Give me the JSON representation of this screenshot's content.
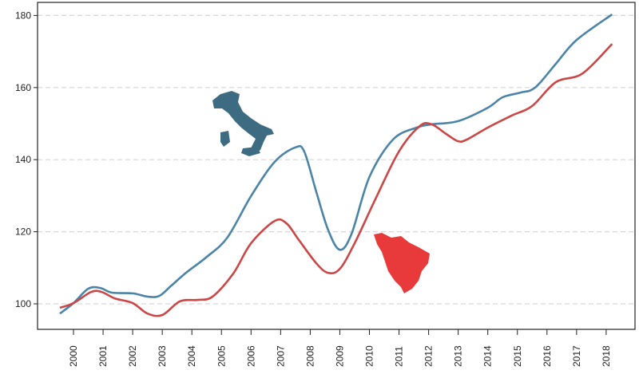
{
  "chart_data": {
    "type": "line",
    "title": "",
    "xlabel": "",
    "ylabel": "",
    "xlim": [
      1999.4,
      2018.6
    ],
    "ylim": [
      93.5,
      183.5
    ],
    "grid": "horizontal dashed",
    "yticks": [
      100,
      120,
      140,
      160,
      180
    ],
    "xticks": [
      "2000",
      "2001",
      "2002",
      "2003",
      "2004",
      "2005",
      "2006",
      "2007",
      "2008",
      "2009",
      "2010",
      "2011",
      "2012",
      "2013",
      "2014",
      "2015",
      "2016",
      "2017",
      "2018"
    ],
    "series": [
      {
        "name": "Italy",
        "color": "#4a84a6",
        "x": [
          1999.54,
          2000,
          2000.5,
          2000.9,
          2001.3,
          2002,
          2002.5,
          2002.9,
          2003.3,
          2003.8,
          2004.5,
          2005.2,
          2006,
          2006.8,
          2007.5,
          2007.8,
          2008.2,
          2008.6,
          2009,
          2009.4,
          2010,
          2010.8,
          2011.6,
          2012.1,
          2013,
          2014,
          2014.5,
          2015.1,
          2015.6,
          2016.3,
          2017,
          2018.2
        ],
        "y": [
          97.3,
          100.2,
          104.2,
          104.4,
          103.1,
          102.9,
          102,
          102.2,
          105,
          108.6,
          113,
          118.4,
          129.9,
          139.4,
          143.4,
          142.2,
          131.2,
          120.6,
          115,
          119.5,
          135.2,
          145.6,
          148.9,
          149.8,
          150.7,
          154.4,
          157.3,
          158.6,
          160,
          166.6,
          173.2,
          180.3
        ]
      },
      {
        "name": "Tuscany",
        "color": "#cc4646",
        "x": [
          1999.54,
          2000,
          2000.6,
          2000.95,
          2001.4,
          2002,
          2002.5,
          2003,
          2003.6,
          2004.2,
          2004.7,
          2005.4,
          2006,
          2006.8,
          2007.2,
          2007.6,
          2008.2,
          2008.6,
          2009,
          2009.5,
          2010.2,
          2011,
          2011.7,
          2012.1,
          2012.6,
          2013,
          2013.3,
          2014,
          2014.8,
          2015.5,
          2016.3,
          2017.2,
          2018.2
        ],
        "y": [
          98.9,
          100.2,
          103.3,
          103.3,
          101.5,
          100.2,
          97.3,
          96.9,
          100.7,
          101.1,
          102,
          108.4,
          116.8,
          123,
          122.3,
          117.9,
          111.3,
          108.6,
          109.7,
          116.8,
          129,
          142.3,
          149.3,
          149.8,
          147.1,
          145.1,
          145.6,
          148.9,
          152.2,
          154.9,
          161.5,
          163.9,
          172.1
        ]
      }
    ]
  }
}
